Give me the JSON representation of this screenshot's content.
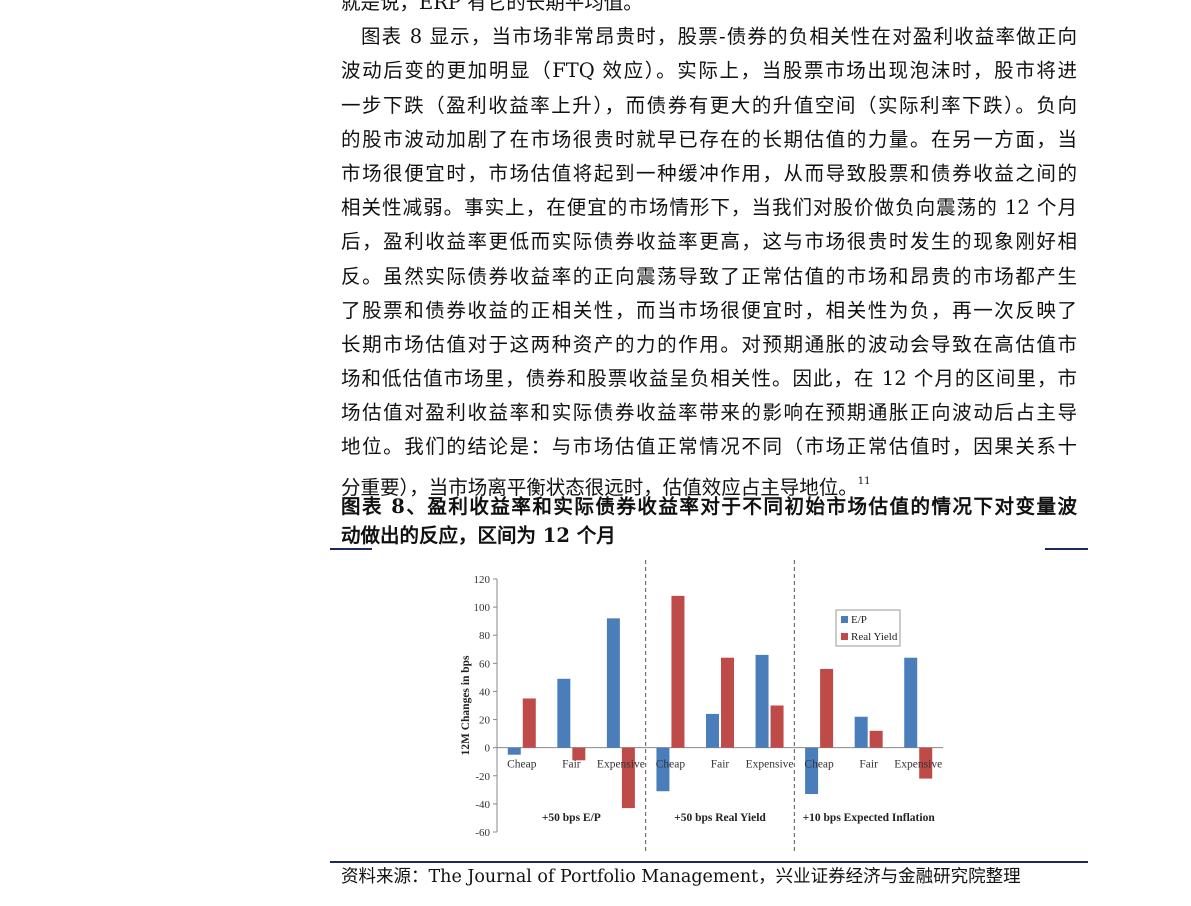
{
  "paragraph": {
    "lines": [
      "就是说，ERP 有它的长期平均值。",
      "图表 8 显示，当市场非常昂贵时，股票-债券的负相关性在对盈利收益率做正向",
      "波动后变的更加明显（FTQ 效应）。实际上，当股票市场出现泡沫时，股市将进",
      "一步下跌（盈利收益率上升），而债券有更大的升值空间（实际利率下跌）。负向",
      "的股市波动加剧了在市场很贵时就早已存在的长期估值的力量。在另一方面，当",
      "市场很便宜时，市场估值将起到一种缓冲作用，从而导致股票和债券收益之间的",
      "相关性减弱。事实上，在便宜的市场情形下，当我们对股价做负向震荡的 12 个月",
      "后，盈利收益率更低而实际债券收益率更高，这与市场很贵时发生的现象刚好相",
      "反。虽然实际债券收益率的正向震荡导致了正常估值的市场和昂贵的市场都产生",
      "了股票和债券收益的正相关性，而当市场很便宜时，相关性为负，再一次反映了",
      "长期市场估值对于这两种资产的力的作用。对预期通胀的波动会导致在高估值市",
      "场和低估值市场里，债券和股票收益呈负相关性。因此，在 12 个月的区间里，市",
      "场估值对盈利收益率和实际债券收益率带来的影响在预期通胀正向波动后占主导",
      "地位。我们的结论是：与市场估值正常情况不同（市场正常估值时，因果关系十",
      "分重要），当市场离平衡状态很远时，估值效应占主导地位。"
    ],
    "footnote": "11"
  },
  "figure": {
    "title_line1": "图表 8、盈利收益率和实际债券收益率对于不同初始市场估值的情况下对变量波",
    "title_line2": "动做出的反应，区间为 12 个月"
  },
  "source": "资料来源：The Journal of Portfolio Management，兴业证券经济与金融研究院整理",
  "chart_data": {
    "type": "bar",
    "ylabel": "12M Changes in bps",
    "ylim": [
      -60,
      120
    ],
    "yticks": [
      -60,
      -40,
      -20,
      0,
      20,
      40,
      60,
      80,
      100,
      120
    ],
    "groups": [
      {
        "label": "+50 bps E/P",
        "categories": [
          "Cheap",
          "Fair",
          "Expensive"
        ]
      },
      {
        "label": "+50 bps Real Yield",
        "categories": [
          "Cheap",
          "Fair",
          "Expensive"
        ]
      },
      {
        "label": "+10 bps Expected Inflation",
        "categories": [
          "Cheap",
          "Fair",
          "Expensive"
        ]
      }
    ],
    "series": [
      {
        "name": "E/P",
        "color": "#4a7ebb",
        "values": [
          -5,
          49,
          92,
          -31,
          24,
          66,
          -33,
          22,
          64
        ]
      },
      {
        "name": "Real Yield",
        "color": "#be4b48",
        "values": [
          35,
          -9,
          -43,
          108,
          64,
          30,
          56,
          12,
          -22
        ]
      }
    ],
    "legend": "top-right",
    "grid": false
  }
}
